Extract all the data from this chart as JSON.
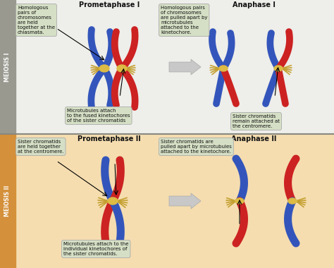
{
  "bg_top": "#eeeeea",
  "bg_bottom": "#f5ddb0",
  "sidebar_top": "#999990",
  "sidebar_bottom": "#d4903a",
  "blue_chr": "#3355bb",
  "red_chr": "#cc2222",
  "centromere_color": "#ddbb44",
  "text_box_color": "#d5dfc5",
  "text_color": "#111111",
  "title_color": "#111111",
  "sidebar_text_top": "MEIOSIS I",
  "sidebar_text_bottom": "MEIOSIS II",
  "title_pm1": "Prometaphase I",
  "title_an1": "Anaphase I",
  "title_pm2": "Prometaphase II",
  "title_an2": "Anaphase II",
  "label_pm1_top": "Homologous\npairs of\nchromosomes\nare held\ntogether at the\nchiasmata.",
  "label_an1_top": "Homologous pairs\nof chromosomes\nare pulled apart by\nmicrotubules\nattached to the\nkinetochore.",
  "label_pm1_bot": "Microtubules attach\nto the fused kinetochores\nof the sister chromatids",
  "label_an1_bot": "Sister chromatids\nremain attached at\nthe centromere.",
  "label_pm2_top": "Sister chromatids\nare held together\nat the centromere.",
  "label_an2_top": "Sister chromatids are\npulled apart by microtubules\nattached to the kinetochore.",
  "label_pm2_bot": "Microtubules attach to the\nindividual kinetochores of\nthe sister chromatids."
}
